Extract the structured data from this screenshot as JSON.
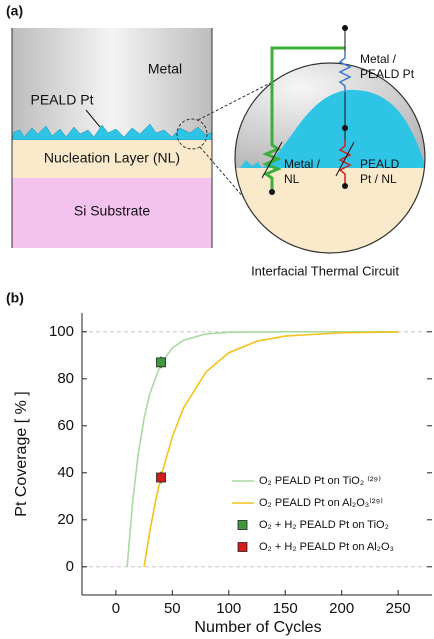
{
  "panel_a": {
    "label": "(a)",
    "layers": {
      "metal": "Metal",
      "pt": "PEALD Pt",
      "nl": "Nucleation Layer (NL)",
      "si": "Si Substrate"
    },
    "circuit": {
      "metal_pt": [
        "Metal /",
        "PEALD Pt"
      ],
      "metal_nl": [
        "Metal /",
        "NL"
      ],
      "pt_nl": [
        "PEALD",
        "Pt / NL"
      ]
    },
    "caption": "Interfacial Thermal Circuit"
  },
  "chart_data": {
    "type": "line",
    "panel_label": "(b)",
    "x_label": "Number of Cycles",
    "y_label": "Pt Coverage [ % ]",
    "xlim": [
      -30,
      280
    ],
    "ylim": [
      -12,
      108
    ],
    "xticks": [
      0,
      50,
      100,
      150,
      200,
      250
    ],
    "yticks": [
      0,
      20,
      40,
      60,
      80,
      100
    ],
    "dashed_lines": [
      0,
      100
    ],
    "series": [
      {
        "name": "O₂ PEALD Pt on TiO₂ ⁽²⁹⁾",
        "type": "line",
        "color": "#a9d9a1",
        "x": [
          10,
          15,
          20,
          25,
          30,
          40,
          50,
          60,
          80,
          100,
          150,
          200,
          250
        ],
        "values": [
          0,
          28.3,
          48.7,
          63.2,
          73.6,
          86.5,
          93.1,
          96.4,
          99.1,
          99.8,
          100,
          100,
          100
        ]
      },
      {
        "name": "O₂ PEALD Pt on Al₂O₃⁽²⁹⁾",
        "type": "line",
        "color": "#f4c21c",
        "x": [
          25,
          30,
          35,
          40,
          50,
          60,
          80,
          100,
          125,
          150,
          200,
          250
        ],
        "values": [
          0,
          14.9,
          27.6,
          38.4,
          55.3,
          67.7,
          83.0,
          91.1,
          96.0,
          98.2,
          99.6,
          99.9
        ]
      },
      {
        "name": "O₂ + H₂ PEALD Pt on TiO₂",
        "type": "scatter",
        "color": "#3f9a3c",
        "x": [
          40
        ],
        "values": [
          87
        ],
        "errors": [
          2.5
        ]
      },
      {
        "name": "O₂ + H₂ PEALD Pt on Al₂O₃",
        "type": "scatter",
        "color": "#d41c1c",
        "x": [
          40
        ],
        "values": [
          38
        ],
        "errors": [
          2.5
        ]
      }
    ]
  }
}
